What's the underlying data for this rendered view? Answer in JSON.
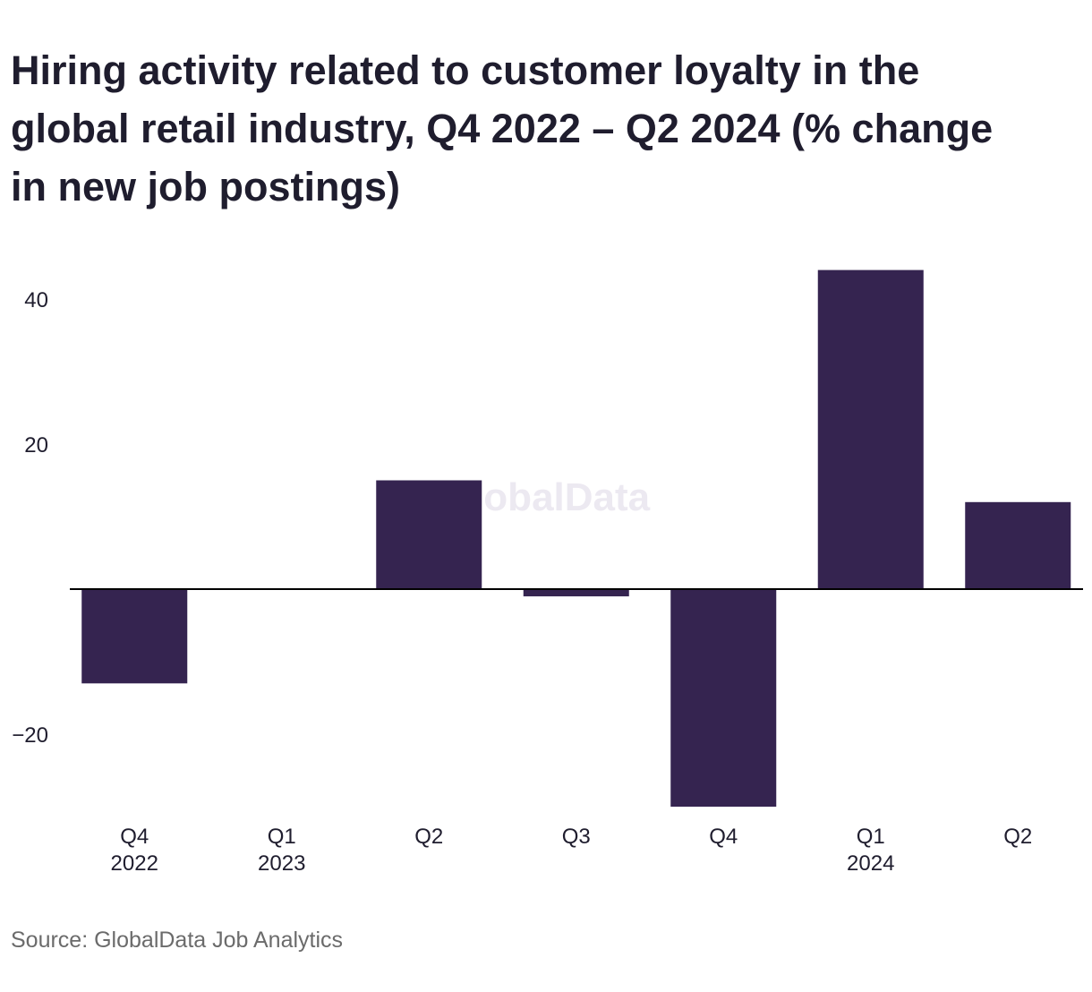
{
  "chart_data": {
    "type": "bar",
    "title_lines": [
      "Hiring activity related to customer loyalty in the",
      "global retail industry, Q4 2022 – Q2 2024 (% change",
      "in new job postings)"
    ],
    "categories": [
      {
        "label": "Q4",
        "year": "2022"
      },
      {
        "label": "Q1",
        "year": "2023"
      },
      {
        "label": "Q2",
        "year": ""
      },
      {
        "label": "Q3",
        "year": ""
      },
      {
        "label": "Q4",
        "year": ""
      },
      {
        "label": "Q1",
        "year": "2024"
      },
      {
        "label": "Q2",
        "year": ""
      }
    ],
    "values": [
      -13,
      0,
      15,
      -1,
      -30,
      44,
      12
    ],
    "yticks": [
      {
        "value": 40,
        "label": "40"
      },
      {
        "value": 20,
        "label": "20"
      },
      {
        "value": -20,
        "label": "−20"
      }
    ],
    "ylim": [
      -30,
      44
    ],
    "grid": false,
    "bar_color": "#352450",
    "axis_color": "#000000",
    "watermark": "GlobalData"
  },
  "source": "Source: GlobalData Job Analytics"
}
